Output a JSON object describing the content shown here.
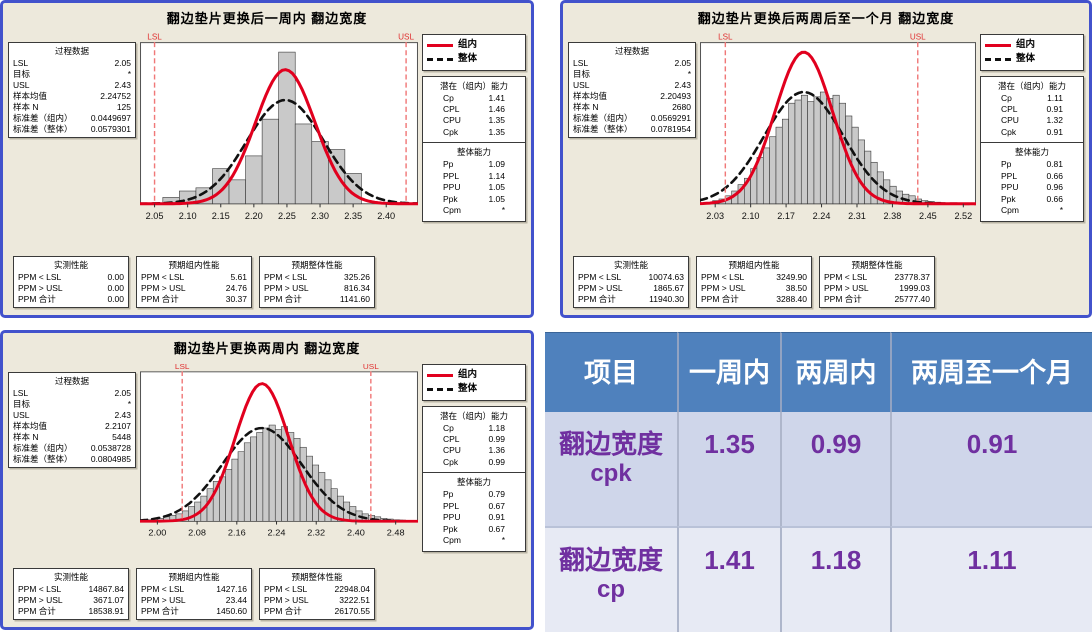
{
  "colors": {
    "chart_background": "#EDE9DC",
    "chart_border_blue": "#4252CC",
    "bar_fill": "#C9C9C9",
    "bar_stroke": "#3A3A3A",
    "within_curve_red": "#E1001E",
    "overall_curve_black": "#111111",
    "spec_line_red": "#F07878",
    "spec_label_red": "#E03030",
    "table_header_blue": "#4F81BD",
    "table_row_odd": "#CFD6EA",
    "table_row_even": "#E7EAF4",
    "table_value_purple": "#7030A0"
  },
  "chart_data": [
    {
      "type": "bar",
      "subtype": "capability-histogram",
      "title": "翻边垫片更换后一周内  翻边宽度",
      "process_data": {
        "title": "过程数据",
        "rows": [
          [
            "LSL",
            "2.05"
          ],
          [
            "目标",
            "*"
          ],
          [
            "USL",
            "2.43"
          ],
          [
            "样本均值",
            "2.24752"
          ],
          [
            "样本 N",
            "125"
          ],
          [
            "标准差（组内）",
            "0.0449697"
          ],
          [
            "标准差（整体）",
            "0.0579301"
          ]
        ]
      },
      "legend": [
        {
          "label": "组内"
        },
        {
          "label": "整体"
        }
      ],
      "capability": {
        "within": {
          "title": "潜在（组内）能力",
          "rows": [
            [
              "Cp",
              "1.41"
            ],
            [
              "CPL",
              "1.46"
            ],
            [
              "CPU",
              "1.35"
            ],
            [
              "Cpk",
              "1.35"
            ]
          ]
        },
        "overall": {
          "title": "整体能力",
          "rows": [
            [
              "Pp",
              "1.09"
            ],
            [
              "PPL",
              "1.14"
            ],
            [
              "PPU",
              "1.05"
            ],
            [
              "Ppk",
              "1.05"
            ],
            [
              "Cpm",
              "*"
            ]
          ]
        }
      },
      "performance": [
        {
          "title": "实测性能",
          "rows": [
            [
              "PPM < LSL",
              "0.00"
            ],
            [
              "PPM > USL",
              "0.00"
            ],
            [
              "PPM 合计",
              "0.00"
            ]
          ]
        },
        {
          "title": "预期组内性能",
          "rows": [
            [
              "PPM < LSL",
              "5.61"
            ],
            [
              "PPM > USL",
              "24.76"
            ],
            [
              "PPM 合计",
              "30.37"
            ]
          ]
        },
        {
          "title": "预期整体性能",
          "rows": [
            [
              "PPM < LSL",
              "325.26"
            ],
            [
              "PPM > USL",
              "816.34"
            ],
            [
              "PPM 合计",
              "1141.60"
            ]
          ]
        }
      ],
      "plot": {
        "x_min": 2.028,
        "x_max": 2.448,
        "x_ticks": [
          "2.05",
          "2.10",
          "2.15",
          "2.20",
          "2.25",
          "2.30",
          "2.35",
          "2.40"
        ],
        "lsl": {
          "label": "LSL",
          "value": 2.05
        },
        "usl": {
          "label": "USL",
          "value": 2.43
        },
        "bins": {
          "start": 2.0625,
          "width": 0.025,
          "heights": [
            0.04,
            0.08,
            0.1,
            0.22,
            0.15,
            0.3,
            0.53,
            0.95,
            0.5,
            0.39,
            0.34,
            0.19
          ]
        },
        "curves": {
          "within": {
            "mean": 2.24752,
            "sd": 0.0449697,
            "peak": 0.84
          },
          "overall": {
            "mean": 2.24752,
            "sd": 0.0579301,
            "peak": 0.65
          }
        }
      }
    },
    {
      "type": "bar",
      "subtype": "capability-histogram",
      "title": "翻边垫片更换后两周后至一个月  翻边宽度",
      "process_data": {
        "title": "过程数据",
        "rows": [
          [
            "LSL",
            "2.05"
          ],
          [
            "目标",
            "*"
          ],
          [
            "USL",
            "2.43"
          ],
          [
            "样本均值",
            "2.20493"
          ],
          [
            "样本 N",
            "2680"
          ],
          [
            "标准差（组内）",
            "0.0569291"
          ],
          [
            "标准差（整体）",
            "0.0781954"
          ]
        ]
      },
      "legend": [
        {
          "label": "组内"
        },
        {
          "label": "整体"
        }
      ],
      "capability": {
        "within": {
          "title": "潜在（组内）能力",
          "rows": [
            [
              "Cp",
              "1.11"
            ],
            [
              "CPL",
              "0.91"
            ],
            [
              "CPU",
              "1.32"
            ],
            [
              "Cpk",
              "0.91"
            ]
          ]
        },
        "overall": {
          "title": "整体能力",
          "rows": [
            [
              "Pp",
              "0.81"
            ],
            [
              "PPL",
              "0.66"
            ],
            [
              "PPU",
              "0.96"
            ],
            [
              "Ppk",
              "0.66"
            ],
            [
              "Cpm",
              "*"
            ]
          ]
        }
      },
      "performance": [
        {
          "title": "实测性能",
          "rows": [
            [
              "PPM < LSL",
              "10074.63"
            ],
            [
              "PPM > USL",
              "1865.67"
            ],
            [
              "PPM 合计",
              "11940.30"
            ]
          ]
        },
        {
          "title": "预期组内性能",
          "rows": [
            [
              "PPM < LSL",
              "3249.90"
            ],
            [
              "PPM > USL",
              "38.50"
            ],
            [
              "PPM 合计",
              "3288.40"
            ]
          ]
        },
        {
          "title": "预期整体性能",
          "rows": [
            [
              "PPM < LSL",
              "23778.37"
            ],
            [
              "PPM > USL",
              "1999.03"
            ],
            [
              "PPM 合计",
              "25777.40"
            ]
          ]
        }
      ],
      "plot": {
        "x_min": 2.0,
        "x_max": 2.545,
        "x_ticks": [
          "2.03",
          "2.10",
          "2.17",
          "2.24",
          "2.31",
          "2.38",
          "2.45",
          "2.52"
        ],
        "lsl": {
          "label": "LSL",
          "value": 2.05
        },
        "usl": {
          "label": "USL",
          "value": 2.43
        },
        "bins": {
          "start": 2.025,
          "width": 0.0125,
          "heights": [
            0.02,
            0.03,
            0.05,
            0.08,
            0.12,
            0.16,
            0.22,
            0.29,
            0.35,
            0.42,
            0.48,
            0.53,
            0.63,
            0.65,
            0.68,
            0.64,
            0.67,
            0.7,
            0.66,
            0.68,
            0.63,
            0.55,
            0.48,
            0.4,
            0.33,
            0.26,
            0.2,
            0.15,
            0.11,
            0.08,
            0.06,
            0.05,
            0.03,
            0.02,
            0.015,
            0.01
          ]
        },
        "curves": {
          "within": {
            "mean": 2.20493,
            "sd": 0.0569291,
            "peak": 0.95
          },
          "overall": {
            "mean": 2.20493,
            "sd": 0.0781954,
            "peak": 0.7
          }
        }
      }
    },
    {
      "type": "bar",
      "subtype": "capability-histogram",
      "title": "翻边垫片更换两周内  翻边宽度",
      "process_data": {
        "title": "过程数据",
        "rows": [
          [
            "LSL",
            "2.05"
          ],
          [
            "目标",
            "*"
          ],
          [
            "USL",
            "2.43"
          ],
          [
            "样本均值",
            "2.2107"
          ],
          [
            "样本 N",
            "5448"
          ],
          [
            "标准差（组内）",
            "0.0538728"
          ],
          [
            "标准差（整体）",
            "0.0804985"
          ]
        ]
      },
      "legend": [
        {
          "label": "组内"
        },
        {
          "label": "整体"
        }
      ],
      "capability": {
        "within": {
          "title": "潜在（组内）能力",
          "rows": [
            [
              "Cp",
              "1.18"
            ],
            [
              "CPL",
              "0.99"
            ],
            [
              "CPU",
              "1.36"
            ],
            [
              "Cpk",
              "0.99"
            ]
          ]
        },
        "overall": {
          "title": "整体能力",
          "rows": [
            [
              "Pp",
              "0.79"
            ],
            [
              "PPL",
              "0.67"
            ],
            [
              "PPU",
              "0.91"
            ],
            [
              "Ppk",
              "0.67"
            ],
            [
              "Cpm",
              "*"
            ]
          ]
        }
      },
      "performance": [
        {
          "title": "实测性能",
          "rows": [
            [
              "PPM < LSL",
              "14867.84"
            ],
            [
              "PPM > USL",
              "3671.07"
            ],
            [
              "PPM 合计",
              "18538.91"
            ]
          ]
        },
        {
          "title": "预期组内性能",
          "rows": [
            [
              "PPM < LSL",
              "1427.16"
            ],
            [
              "PPM > USL",
              "23.44"
            ],
            [
              "PPM 合计",
              "1450.60"
            ]
          ]
        },
        {
          "title": "预期整体性能",
          "rows": [
            [
              "PPM < LSL",
              "22948.04"
            ],
            [
              "PPM > USL",
              "3222.51"
            ],
            [
              "PPM 合计",
              "26170.55"
            ]
          ]
        }
      ],
      "plot": {
        "x_min": 1.965,
        "x_max": 2.525,
        "x_ticks": [
          "2.00",
          "2.08",
          "2.16",
          "2.24",
          "2.32",
          "2.40",
          "2.48"
        ],
        "lsl": {
          "label": "LSL",
          "value": 2.05
        },
        "usl": {
          "label": "USL",
          "value": 2.43
        },
        "bins": {
          "start": 1.975,
          "width": 0.0125,
          "heights": [
            0.01,
            0.015,
            0.02,
            0.03,
            0.04,
            0.05,
            0.07,
            0.1,
            0.13,
            0.17,
            0.22,
            0.27,
            0.3,
            0.35,
            0.42,
            0.47,
            0.53,
            0.57,
            0.6,
            0.63,
            0.65,
            0.62,
            0.64,
            0.6,
            0.56,
            0.5,
            0.44,
            0.38,
            0.33,
            0.28,
            0.22,
            0.17,
            0.13,
            0.1,
            0.07,
            0.05,
            0.04,
            0.03,
            0.02,
            0.015,
            0.01,
            0.008
          ]
        },
        "curves": {
          "within": {
            "mean": 2.2107,
            "sd": 0.0538728,
            "peak": 0.93
          },
          "overall": {
            "mean": 2.2107,
            "sd": 0.0804985,
            "peak": 0.63
          }
        }
      }
    },
    {
      "type": "table",
      "headers": [
        "项目",
        "一周内",
        "两周内",
        "两周至一个月"
      ],
      "rows": [
        {
          "label": "翻边宽度",
          "sub": "cpk",
          "values": [
            "1.35",
            "0.99",
            "0.91"
          ]
        },
        {
          "label": "翻边宽度",
          "sub": "cp",
          "values": [
            "1.41",
            "1.18",
            "1.11"
          ]
        }
      ]
    }
  ]
}
